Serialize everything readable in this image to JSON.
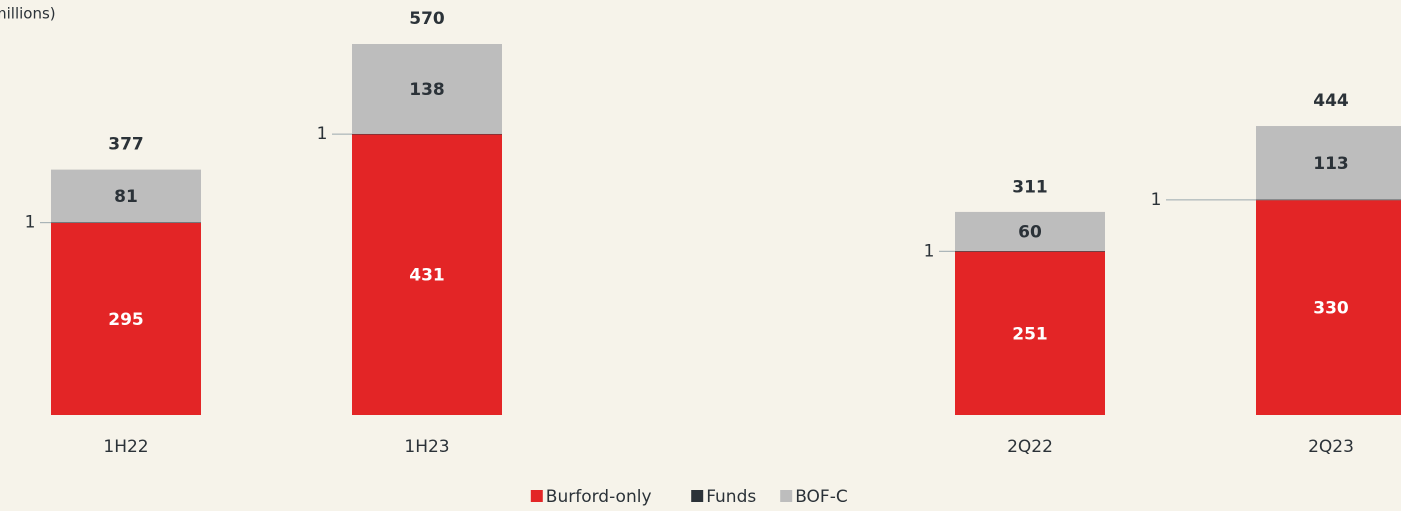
{
  "chart_data": {
    "type": "stacked_bar",
    "subtitle": "millions)",
    "categories": [
      "1H22",
      "1H23",
      "2Q22",
      "2Q23"
    ],
    "series": [
      {
        "name": "Burford-only",
        "color": "#e32526",
        "values": [
          295,
          431,
          251,
          330
        ]
      },
      {
        "name": "Funds",
        "color": "#2b3238",
        "values": [
          1,
          1,
          1,
          1
        ]
      },
      {
        "name": "BOF-C",
        "color": "#bdbdbd",
        "values": [
          81,
          138,
          60,
          113
        ]
      }
    ],
    "totals": [
      377,
      570,
      311,
      444
    ],
    "legend": "bottom"
  }
}
